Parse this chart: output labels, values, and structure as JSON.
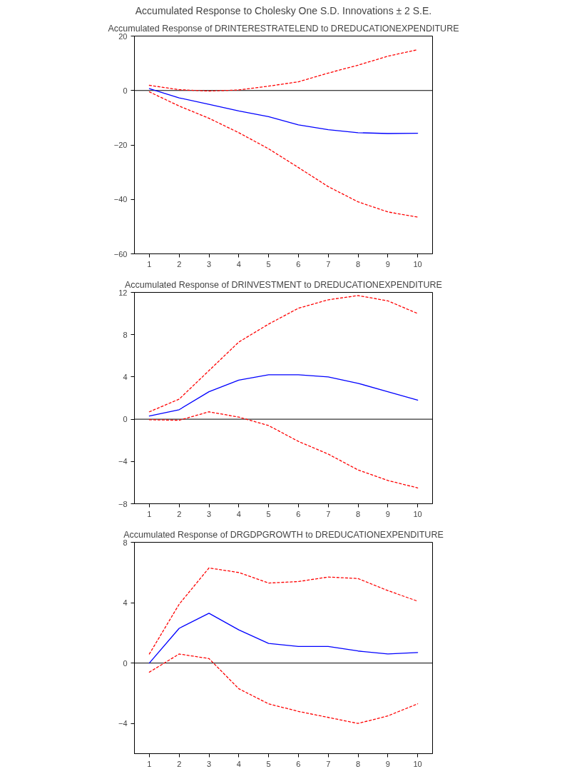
{
  "chart_data": [
    {
      "type": "line",
      "title": "Accumulated Response to Cholesky One S.D. Innovations ± 2 S.E.",
      "subtitle": "Accumulated Response of DRINTERESTRATELEND to DREDUCATIONEXPENDITURE",
      "x": [
        1,
        2,
        3,
        4,
        5,
        6,
        7,
        8,
        9,
        10
      ],
      "xlim": [
        0.5,
        10.5
      ],
      "xticks": [
        1,
        2,
        3,
        4,
        5,
        6,
        7,
        8,
        9,
        10
      ],
      "ylim": [
        -60,
        20
      ],
      "yticks": [
        -60,
        -40,
        -20,
        0,
        20
      ],
      "ref_lines": [
        {
          "axis": "y",
          "value": 0,
          "color": "#000000"
        }
      ],
      "series": [
        {
          "color": "#0000ff",
          "line_style": "solid",
          "values": [
            0.7,
            -2.7,
            -5.1,
            -7.5,
            -9.6,
            -12.6,
            -14.4,
            -15.5,
            -15.8,
            -15.7
          ]
        },
        {
          "color": "#ff0000",
          "line_style": "dashed",
          "values": [
            1.9,
            0.3,
            -0.2,
            0.2,
            1.6,
            3.2,
            6.4,
            9.3,
            12.6,
            15.0
          ]
        },
        {
          "color": "#ff0000",
          "line_style": "dashed",
          "values": [
            -0.5,
            -5.7,
            -10.2,
            -15.5,
            -21.4,
            -28.3,
            -35.3,
            -40.9,
            -44.6,
            -46.5
          ]
        }
      ]
    },
    {
      "type": "line",
      "title": "Accumulated Response of DRINVESTMENT to DREDUCATIONEXPENDITURE",
      "x": [
        1,
        2,
        3,
        4,
        5,
        6,
        7,
        8,
        9,
        10
      ],
      "xlim": [
        0.5,
        10.5
      ],
      "xticks": [
        1,
        2,
        3,
        4,
        5,
        6,
        7,
        8,
        9,
        10
      ],
      "ylim": [
        -8,
        12
      ],
      "yticks": [
        -8,
        -4,
        0,
        4,
        8,
        12
      ],
      "ref_lines": [
        {
          "axis": "y",
          "value": 0,
          "color": "#000000"
        }
      ],
      "series": [
        {
          "color": "#0000ff",
          "line_style": "solid",
          "values": [
            0.3,
            0.9,
            2.6,
            3.7,
            4.2,
            4.2,
            4.0,
            3.4,
            2.6,
            1.8
          ]
        },
        {
          "color": "#ff0000",
          "line_style": "dashed",
          "values": [
            0.7,
            1.9,
            4.6,
            7.3,
            9.0,
            10.5,
            11.3,
            11.7,
            11.2,
            10.0
          ]
        },
        {
          "color": "#ff0000",
          "line_style": "dashed",
          "values": [
            -0.05,
            -0.1,
            0.7,
            0.2,
            -0.6,
            -2.1,
            -3.3,
            -4.8,
            -5.8,
            -6.5
          ]
        }
      ]
    },
    {
      "type": "line",
      "title": "Accumulated Response of DRGDPGROWTH to DREDUCATIONEXPENDITURE",
      "x": [
        1,
        2,
        3,
        4,
        5,
        6,
        7,
        8,
        9,
        10
      ],
      "xlim": [
        0.5,
        10.5
      ],
      "xticks": [
        1,
        2,
        3,
        4,
        5,
        6,
        7,
        8,
        9,
        10
      ],
      "ylim": [
        -6,
        8
      ],
      "yticks": [
        -4,
        0,
        4,
        8
      ],
      "ref_lines": [
        {
          "axis": "y",
          "value": 0,
          "color": "#000000"
        }
      ],
      "series": [
        {
          "color": "#0000ff",
          "line_style": "solid",
          "values": [
            0.0,
            2.3,
            3.3,
            2.2,
            1.3,
            1.1,
            1.1,
            0.8,
            0.6,
            0.7
          ]
        },
        {
          "color": "#ff0000",
          "line_style": "dashed",
          "values": [
            0.6,
            3.9,
            6.3,
            6.0,
            5.3,
            5.4,
            5.7,
            5.6,
            4.8,
            4.1
          ]
        },
        {
          "color": "#ff0000",
          "line_style": "dashed",
          "values": [
            -0.6,
            0.6,
            0.3,
            -1.7,
            -2.7,
            -3.2,
            -3.6,
            -4.0,
            -3.5,
            -2.7
          ]
        }
      ]
    }
  ]
}
